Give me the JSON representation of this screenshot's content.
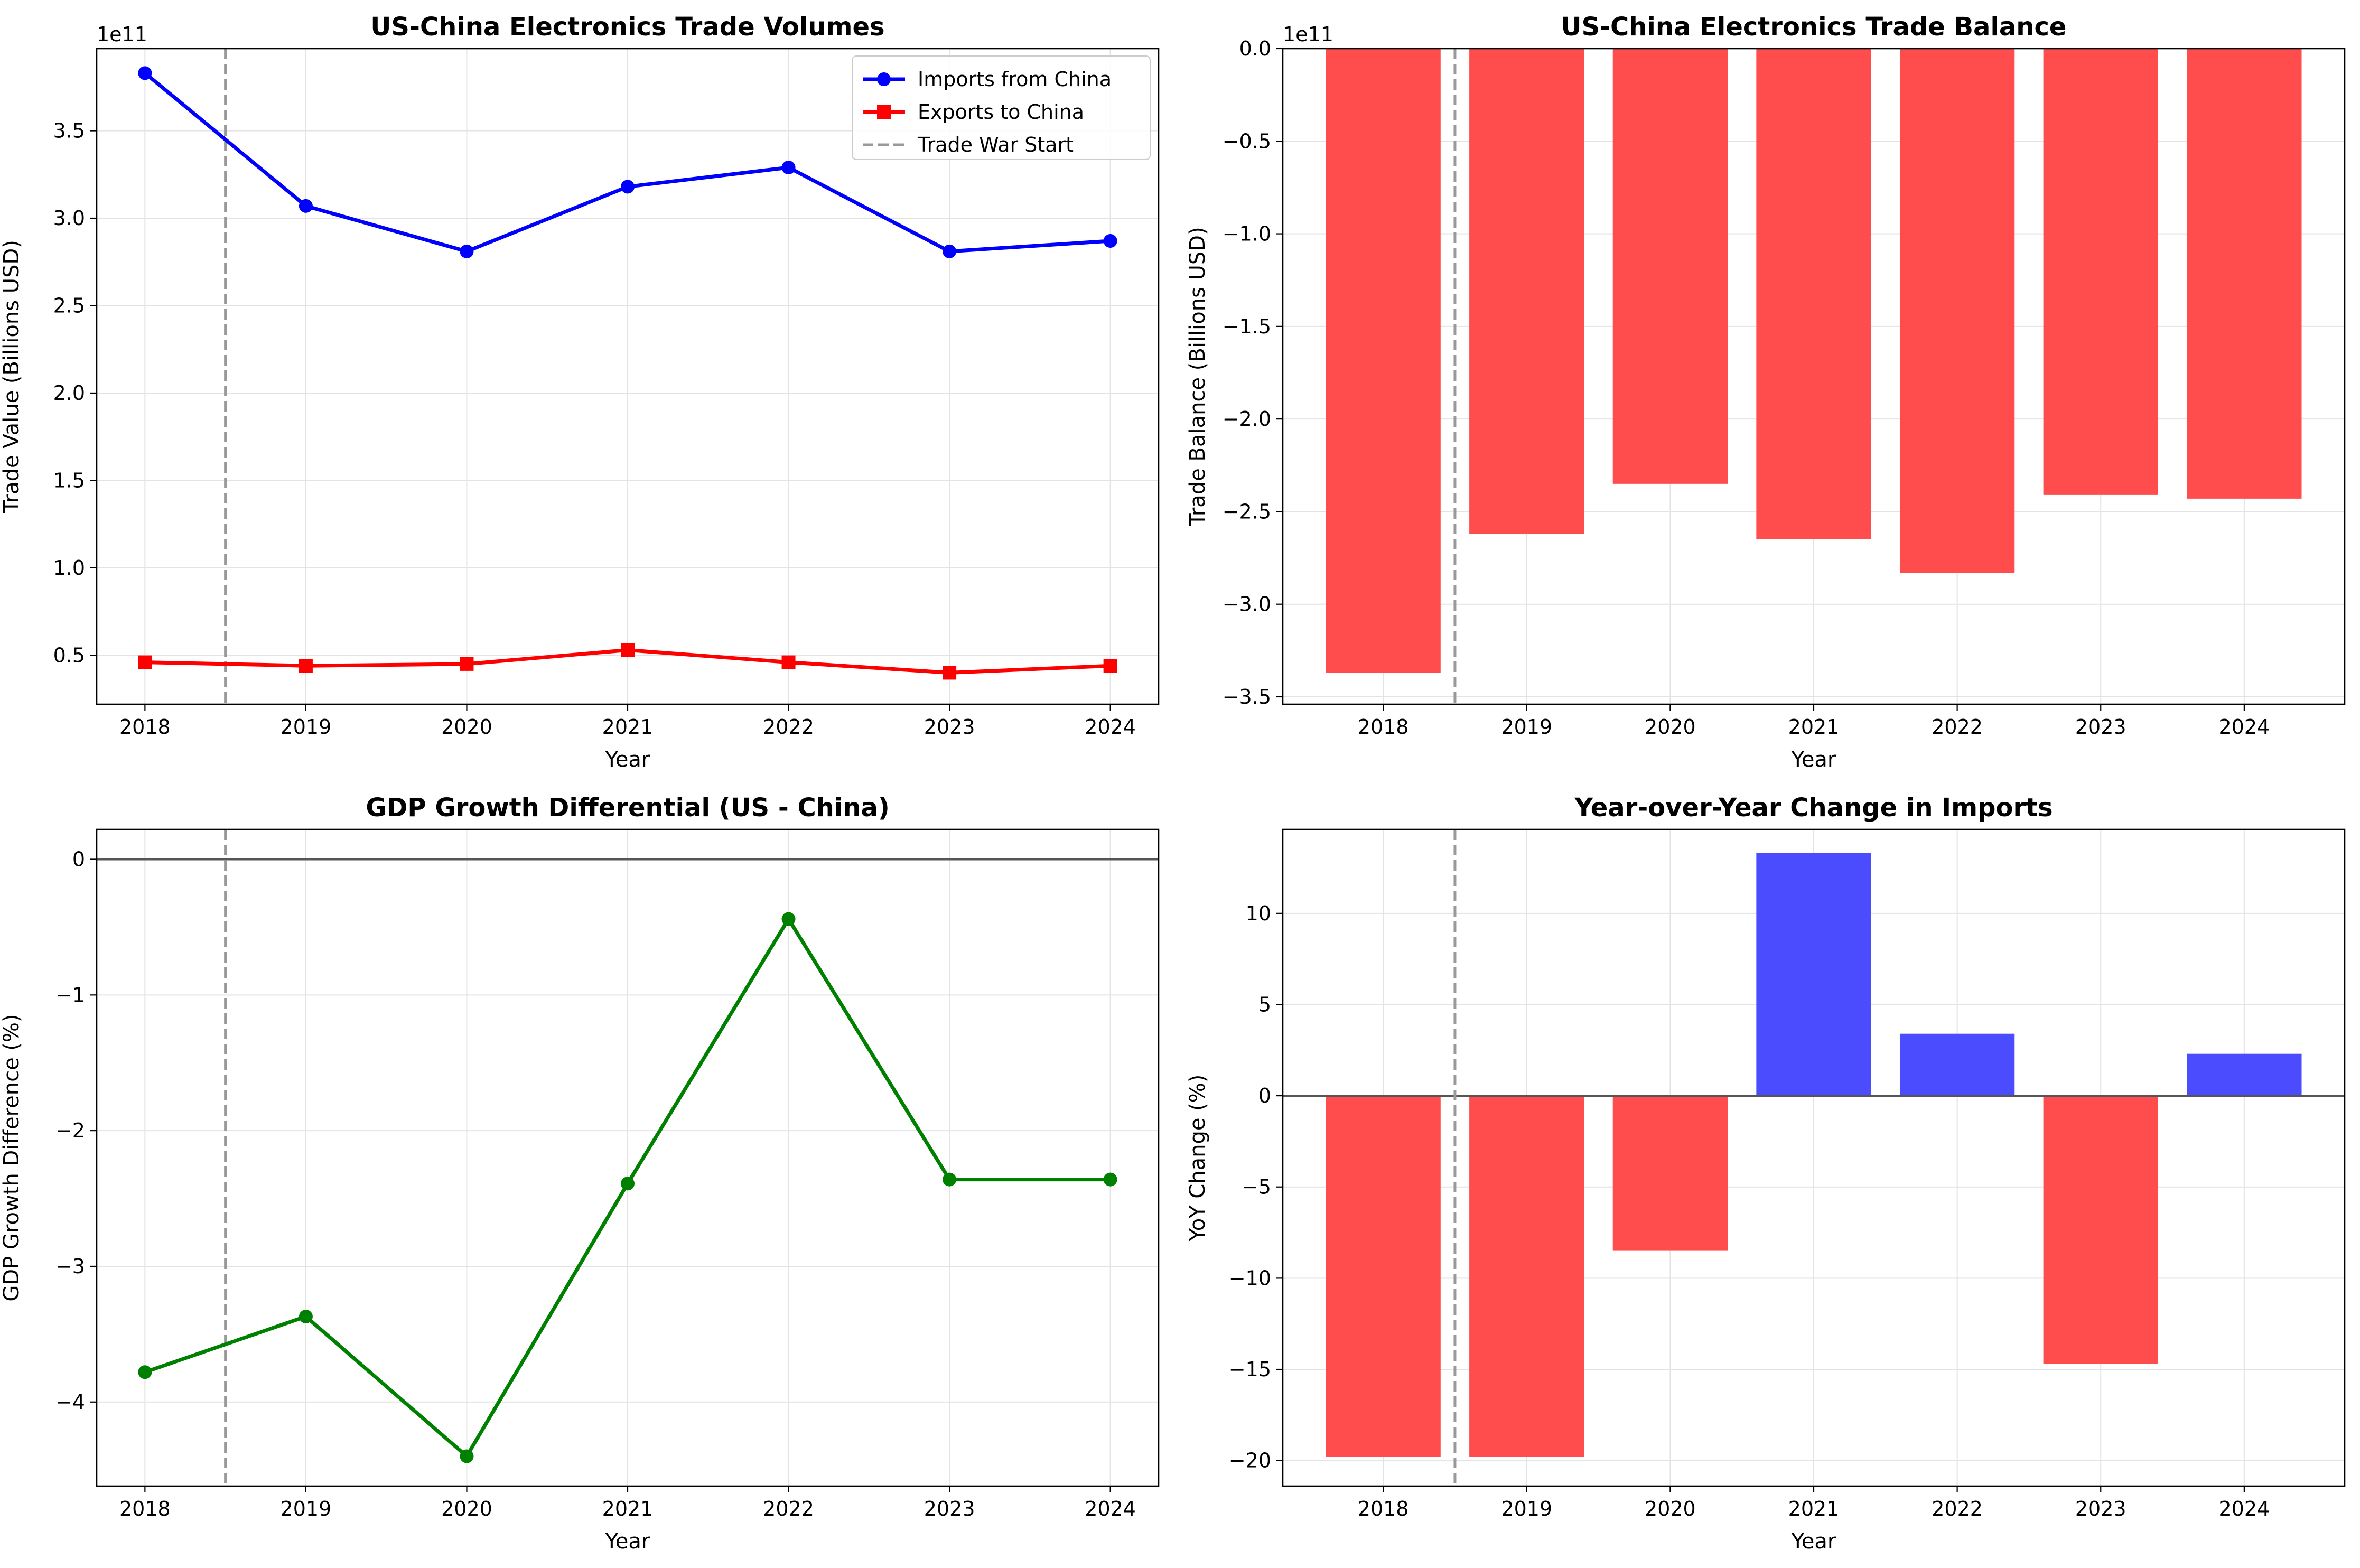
{
  "figure_colors": {
    "imports": "#0000ff",
    "exports": "#ff0000",
    "deficit_bar": "#ff4c4c",
    "positive_bar": "#4c4cff",
    "gdp": "#008000",
    "trade_war": "#999999"
  },
  "chart_data": [
    {
      "id": "volumes",
      "type": "line",
      "title": "US-China Electronics Trade Volumes",
      "xlabel": "Year",
      "ylabel": "Trade Value (Billions USD)",
      "offset_label": "1e11",
      "x": [
        2018,
        2019,
        2020,
        2021,
        2022,
        2023,
        2024
      ],
      "xlim": [
        2017.7,
        2024.3
      ],
      "ylim": [
        0.22,
        3.97
      ],
      "yticks": [
        0.5,
        1.0,
        1.5,
        2.0,
        2.5,
        3.0,
        3.5
      ],
      "ytick_labels": [
        "0.5",
        "1.0",
        "1.5",
        "2.0",
        "2.5",
        "3.0",
        "3.5"
      ],
      "grid": true,
      "legend_position": "top-right",
      "series": [
        {
          "name": "Imports from China",
          "marker": "circle",
          "color": "#0000ff",
          "values": [
            3.83,
            3.07,
            2.81,
            3.18,
            3.29,
            2.81,
            2.87
          ]
        },
        {
          "name": "Exports to China",
          "marker": "square",
          "color": "#ff0000",
          "values": [
            0.46,
            0.44,
            0.45,
            0.53,
            0.46,
            0.4,
            0.44
          ]
        }
      ],
      "vline": {
        "name": "Trade War Start",
        "x": 2018.5
      }
    },
    {
      "id": "balance",
      "type": "bar",
      "title": "US-China Electronics Trade Balance",
      "xlabel": "Year",
      "ylabel": "Trade Balance (Billions USD)",
      "offset_label": "1e11",
      "categories": [
        "2018",
        "2019",
        "2020",
        "2021",
        "2022",
        "2023",
        "2024"
      ],
      "x": [
        2018,
        2019,
        2020,
        2021,
        2022,
        2023,
        2024
      ],
      "xlim": [
        2017.3,
        2024.7
      ],
      "ylim": [
        -3.54,
        0.0
      ],
      "yticks": [
        0,
        -0.5,
        -1.0,
        -1.5,
        -2.0,
        -2.5,
        -3.0,
        -3.5
      ],
      "ytick_labels": [
        "0.0",
        "−0.5",
        "−1.0",
        "−1.5",
        "−2.0",
        "−2.5",
        "−3.0",
        "−3.5"
      ],
      "grid": true,
      "values": [
        -3.37,
        -2.62,
        -2.35,
        -2.65,
        -2.83,
        -2.41,
        -2.43
      ],
      "vline": {
        "x": 2018.5
      }
    },
    {
      "id": "gdp",
      "type": "line",
      "title": "GDP Growth Differential (US - China)",
      "xlabel": "Year",
      "ylabel": "GDP Growth Difference (%)",
      "x": [
        2018,
        2019,
        2020,
        2021,
        2022,
        2023,
        2024
      ],
      "xlim": [
        2017.7,
        2024.3
      ],
      "ylim": [
        -4.62,
        0.22
      ],
      "yticks": [
        0,
        -1,
        -2,
        -3,
        -4
      ],
      "ytick_labels": [
        "0",
        "−1",
        "−2",
        "−3",
        "−4"
      ],
      "grid": true,
      "values": [
        -3.78,
        -3.37,
        -4.4,
        -2.39,
        -0.44,
        -2.36,
        -2.36
      ],
      "hline": {
        "y": 0
      },
      "vline": {
        "x": 2018.5
      }
    },
    {
      "id": "yoy",
      "type": "bar",
      "title": "Year-over-Year Change in Imports",
      "xlabel": "Year",
      "ylabel": "YoY Change (%)",
      "categories": [
        "2018",
        "2019",
        "2020",
        "2021",
        "2022",
        "2023",
        "2024"
      ],
      "x": [
        2018,
        2019,
        2020,
        2021,
        2022,
        2023,
        2024
      ],
      "xlim": [
        2017.3,
        2024.7
      ],
      "ylim": [
        -21.4,
        14.6
      ],
      "yticks": [
        10,
        5,
        0,
        -5,
        -10,
        -15,
        -20
      ],
      "ytick_labels": [
        "10",
        "5",
        "0",
        "−5",
        "−10",
        "−15",
        "−20"
      ],
      "grid": true,
      "values": [
        -19.8,
        -19.8,
        -8.5,
        13.3,
        3.4,
        -14.7,
        2.3
      ],
      "hline": {
        "y": 0
      },
      "vline": {
        "x": 2018.5
      }
    }
  ]
}
